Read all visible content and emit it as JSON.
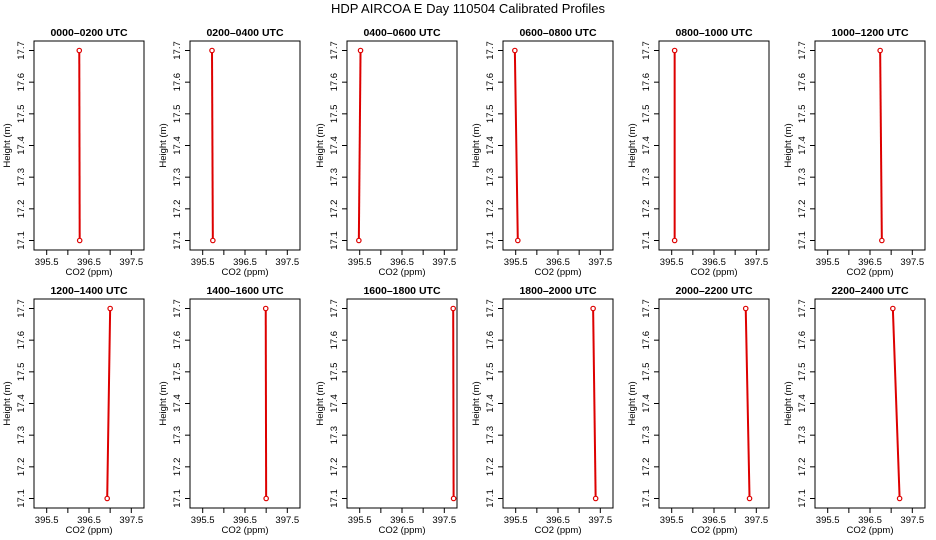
{
  "title": "HDP AIRCOA E  Day 110504  Calibrated Profiles",
  "colors": {
    "profile": "#dd0000",
    "axis": "#000000"
  },
  "chart_data": [
    {
      "type": "line",
      "title": "0000–0200 UTC",
      "xlabel": "CO2 (ppm)",
      "ylabel": "Height (m)",
      "xlim": [
        395.2,
        397.8
      ],
      "ylim": [
        17.07,
        17.73
      ],
      "xticks": [
        "395.5",
        "396.5",
        "397.5"
      ],
      "yticks": [
        "17.1",
        "17.2",
        "17.3",
        "17.4",
        "17.5",
        "17.6",
        "17.7"
      ],
      "x": [
        396.28,
        396.27
      ],
      "y": [
        17.1,
        17.7
      ]
    },
    {
      "type": "line",
      "title": "0200–0400 UTC",
      "xlabel": "CO2 (ppm)",
      "ylabel": "Height (m)",
      "xlim": [
        395.2,
        397.8
      ],
      "ylim": [
        17.07,
        17.73
      ],
      "xticks": [
        "395.5",
        "396.5",
        "397.5"
      ],
      "yticks": [
        "17.1",
        "17.2",
        "17.3",
        "17.4",
        "17.5",
        "17.6",
        "17.7"
      ],
      "x": [
        395.74,
        395.72
      ],
      "y": [
        17.1,
        17.7
      ]
    },
    {
      "type": "line",
      "title": "0400–0600 UTC",
      "xlabel": "CO2 (ppm)",
      "ylabel": "Height (m)",
      "xlim": [
        395.2,
        397.8
      ],
      "ylim": [
        17.07,
        17.73
      ],
      "xticks": [
        "395.5",
        "396.5",
        "397.5"
      ],
      "yticks": [
        "17.1",
        "17.2",
        "17.3",
        "17.4",
        "17.5",
        "17.6",
        "17.7"
      ],
      "x": [
        395.48,
        395.52
      ],
      "y": [
        17.1,
        17.7
      ]
    },
    {
      "type": "line",
      "title": "0600–0800 UTC",
      "xlabel": "CO2 (ppm)",
      "ylabel": "Height (m)",
      "xlim": [
        395.2,
        397.8
      ],
      "ylim": [
        17.07,
        17.73
      ],
      "xticks": [
        "395.5",
        "396.5",
        "397.5"
      ],
      "yticks": [
        "17.1",
        "17.2",
        "17.3",
        "17.4",
        "17.5",
        "17.6",
        "17.7"
      ],
      "x": [
        395.55,
        395.48
      ],
      "y": [
        17.1,
        17.7
      ]
    },
    {
      "type": "line",
      "title": "0800–1000 UTC",
      "xlabel": "CO2 (ppm)",
      "ylabel": "Height (m)",
      "xlim": [
        395.2,
        397.8
      ],
      "ylim": [
        17.07,
        17.73
      ],
      "xticks": [
        "395.5",
        "396.5",
        "397.5"
      ],
      "yticks": [
        "17.1",
        "17.2",
        "17.3",
        "17.4",
        "17.5",
        "17.6",
        "17.7"
      ],
      "x": [
        395.57,
        395.57
      ],
      "y": [
        17.1,
        17.7
      ]
    },
    {
      "type": "line",
      "title": "1000–1200 UTC",
      "xlabel": "CO2 (ppm)",
      "ylabel": "Height (m)",
      "xlim": [
        395.2,
        397.8
      ],
      "ylim": [
        17.07,
        17.73
      ],
      "xticks": [
        "395.5",
        "396.5",
        "397.5"
      ],
      "yticks": [
        "17.1",
        "17.2",
        "17.3",
        "17.4",
        "17.5",
        "17.6",
        "17.7"
      ],
      "x": [
        396.78,
        396.74
      ],
      "y": [
        17.1,
        17.7
      ]
    },
    {
      "type": "line",
      "title": "1200–1400 UTC",
      "xlabel": "CO2 (ppm)",
      "ylabel": "Height (m)",
      "xlim": [
        395.2,
        397.8
      ],
      "ylim": [
        17.07,
        17.73
      ],
      "xticks": [
        "395.5",
        "396.5",
        "397.5"
      ],
      "yticks": [
        "17.1",
        "17.2",
        "17.3",
        "17.4",
        "17.5",
        "17.6",
        "17.7"
      ],
      "x": [
        396.93,
        397.0
      ],
      "y": [
        17.1,
        17.7
      ]
    },
    {
      "type": "line",
      "title": "1400–1600 UTC",
      "xlabel": "CO2 (ppm)",
      "ylabel": "Height (m)",
      "xlim": [
        395.2,
        397.8
      ],
      "ylim": [
        17.07,
        17.73
      ],
      "xticks": [
        "395.5",
        "396.5",
        "397.5"
      ],
      "yticks": [
        "17.1",
        "17.2",
        "17.3",
        "17.4",
        "17.5",
        "17.6",
        "17.7"
      ],
      "x": [
        397.0,
        396.99
      ],
      "y": [
        17.1,
        17.7
      ]
    },
    {
      "type": "line",
      "title": "1600–1800 UTC",
      "xlabel": "CO2 (ppm)",
      "ylabel": "Height (m)",
      "xlim": [
        395.2,
        397.8
      ],
      "ylim": [
        17.07,
        17.73
      ],
      "xticks": [
        "395.5",
        "396.5",
        "397.5"
      ],
      "yticks": [
        "17.1",
        "17.2",
        "17.3",
        "17.4",
        "17.5",
        "17.6",
        "17.7"
      ],
      "x": [
        397.72,
        397.71
      ],
      "y": [
        17.1,
        17.7
      ]
    },
    {
      "type": "line",
      "title": "1800–2000 UTC",
      "xlabel": "CO2 (ppm)",
      "ylabel": "Height (m)",
      "xlim": [
        395.2,
        397.8
      ],
      "ylim": [
        17.07,
        17.73
      ],
      "xticks": [
        "395.5",
        "396.5",
        "397.5"
      ],
      "yticks": [
        "17.1",
        "17.2",
        "17.3",
        "17.4",
        "17.5",
        "17.6",
        "17.7"
      ],
      "x": [
        397.39,
        397.33
      ],
      "y": [
        17.1,
        17.7
      ]
    },
    {
      "type": "line",
      "title": "2000–2200 UTC",
      "xlabel": "CO2 (ppm)",
      "ylabel": "Height (m)",
      "xlim": [
        395.2,
        397.8
      ],
      "ylim": [
        17.07,
        17.73
      ],
      "xticks": [
        "395.5",
        "396.5",
        "397.5"
      ],
      "yticks": [
        "17.1",
        "17.2",
        "17.3",
        "17.4",
        "17.5",
        "17.6",
        "17.7"
      ],
      "x": [
        397.34,
        397.25
      ],
      "y": [
        17.1,
        17.7
      ]
    },
    {
      "type": "line",
      "title": "2200–2400 UTC",
      "xlabel": "CO2 (ppm)",
      "ylabel": "Height (m)",
      "xlim": [
        395.2,
        397.8
      ],
      "ylim": [
        17.07,
        17.73
      ],
      "xticks": [
        "395.5",
        "396.5",
        "397.5"
      ],
      "yticks": [
        "17.1",
        "17.2",
        "17.3",
        "17.4",
        "17.5",
        "17.6",
        "17.7"
      ],
      "x": [
        397.2,
        397.04
      ],
      "y": [
        17.1,
        17.7
      ]
    }
  ]
}
